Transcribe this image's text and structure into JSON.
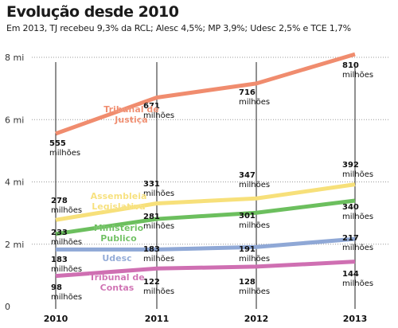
{
  "header": {
    "title": "Evolução desde 2010",
    "subtitle": "Em 2013, TJ recebeu 9,3% da RCL; Alesc 4,5%; MP 3,9%; Udesc 2,5% e TCE 1,7%"
  },
  "chart_data": {
    "type": "line",
    "x": [
      "2010",
      "2011",
      "2012",
      "2013"
    ],
    "ylim": [
      0,
      8
    ],
    "yticks": [
      0,
      2,
      4,
      6,
      8
    ],
    "ytick_labels": [
      "0",
      "2 mi",
      "4 mi",
      "6 mi",
      "8 mi"
    ],
    "value_unit": "milhões",
    "grid": "horizontal, dotted",
    "series": [
      {
        "name": "Tribunal de Justiça",
        "label_lines": [
          "Tribunal de",
          "Justiça"
        ],
        "color": "#f08c6e",
        "values": [
          5.55,
          6.71,
          7.16,
          8.1
        ],
        "value_labels": [
          "555",
          "671",
          "716",
          "810"
        ]
      },
      {
        "name": "Assembleia Legislativa",
        "label_lines": [
          "Assembleia",
          "Legislativa"
        ],
        "color": "#f7e07a",
        "values": [
          2.78,
          3.31,
          3.47,
          3.92
        ],
        "value_labels": [
          "278",
          "331",
          "347",
          "392"
        ]
      },
      {
        "name": "Ministério Publico",
        "label_lines": [
          "Ministério",
          "Publico"
        ],
        "color": "#6cbf5e",
        "values": [
          2.33,
          2.81,
          3.01,
          3.4
        ],
        "value_labels": [
          "233",
          "281",
          "301",
          "340"
        ]
      },
      {
        "name": "Udesc",
        "label_lines": [
          "Udesc"
        ],
        "color": "#8fa8d6",
        "values": [
          1.83,
          1.83,
          1.91,
          2.17
        ],
        "value_labels": [
          "183",
          "183",
          "191",
          "217"
        ]
      },
      {
        "name": "Tribunal de Contas",
        "label_lines": [
          "Tribunal de",
          "Contas"
        ],
        "color": "#cf6fb2",
        "values": [
          0.98,
          1.22,
          1.28,
          1.44
        ],
        "value_labels": [
          "98",
          "122",
          "128",
          "144"
        ]
      }
    ]
  }
}
